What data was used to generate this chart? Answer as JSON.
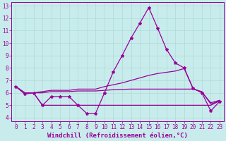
{
  "xlabel": "Windchill (Refroidissement éolien,°C)",
  "xlim": [
    -0.5,
    23.5
  ],
  "ylim": [
    3.7,
    13.3
  ],
  "xticks": [
    0,
    1,
    2,
    3,
    4,
    5,
    6,
    7,
    8,
    9,
    10,
    11,
    12,
    13,
    14,
    15,
    16,
    17,
    18,
    19,
    20,
    21,
    22,
    23
  ],
  "yticks": [
    4,
    5,
    6,
    7,
    8,
    9,
    10,
    11,
    12,
    13
  ],
  "bg_color": "#c8ecec",
  "line_color": "#990099",
  "grid_color": "#b0d8d8",
  "line1_x": [
    0,
    1,
    2,
    3,
    4,
    5,
    6,
    7,
    8,
    9,
    10,
    11,
    12,
    13,
    14,
    15,
    16,
    17,
    18,
    19,
    20,
    21,
    22,
    23
  ],
  "line1_y": [
    6.5,
    5.9,
    6.0,
    5.0,
    5.7,
    5.7,
    5.7,
    5.0,
    4.35,
    4.35,
    6.0,
    7.7,
    9.0,
    10.4,
    11.6,
    12.85,
    11.2,
    9.5,
    8.4,
    8.0,
    6.35,
    6.0,
    4.55,
    5.3
  ],
  "line2_x": [
    0,
    1,
    2,
    3,
    4,
    5,
    6,
    7,
    8,
    9,
    10,
    11,
    12,
    13,
    14,
    15,
    16,
    17,
    18,
    19,
    20,
    21,
    22,
    23
  ],
  "line2_y": [
    6.5,
    6.0,
    6.0,
    6.1,
    6.2,
    6.2,
    6.2,
    6.3,
    6.3,
    6.3,
    6.5,
    6.65,
    6.8,
    7.0,
    7.2,
    7.4,
    7.55,
    7.65,
    7.75,
    7.95,
    6.35,
    6.05,
    5.2,
    5.4
  ],
  "line3_x": [
    0,
    1,
    2,
    3,
    4,
    5,
    6,
    7,
    8,
    9,
    10,
    11,
    12,
    13,
    14,
    15,
    16,
    17,
    18,
    19,
    20,
    21,
    22,
    23
  ],
  "line3_y": [
    6.5,
    6.0,
    6.0,
    6.0,
    6.1,
    6.1,
    6.1,
    6.15,
    6.15,
    6.15,
    6.2,
    6.25,
    6.28,
    6.3,
    6.3,
    6.3,
    6.3,
    6.3,
    6.3,
    6.3,
    6.3,
    6.1,
    5.1,
    5.35
  ],
  "line4_x": [
    0,
    1,
    2,
    3,
    4,
    5,
    6,
    7,
    8,
    9,
    10,
    11,
    12,
    13,
    14,
    15,
    16,
    17,
    18,
    19,
    20,
    21,
    22,
    23
  ],
  "line4_y": [
    6.5,
    6.0,
    6.0,
    5.0,
    5.0,
    5.0,
    5.0,
    5.0,
    5.0,
    5.0,
    5.0,
    5.0,
    5.0,
    5.0,
    5.0,
    5.0,
    5.0,
    5.0,
    5.0,
    5.0,
    5.0,
    5.0,
    5.0,
    5.35
  ],
  "marker": "*",
  "markersize": 3,
  "linewidth": 0.9,
  "tick_fontsize": 5.5,
  "xlabel_fontsize": 6.5
}
